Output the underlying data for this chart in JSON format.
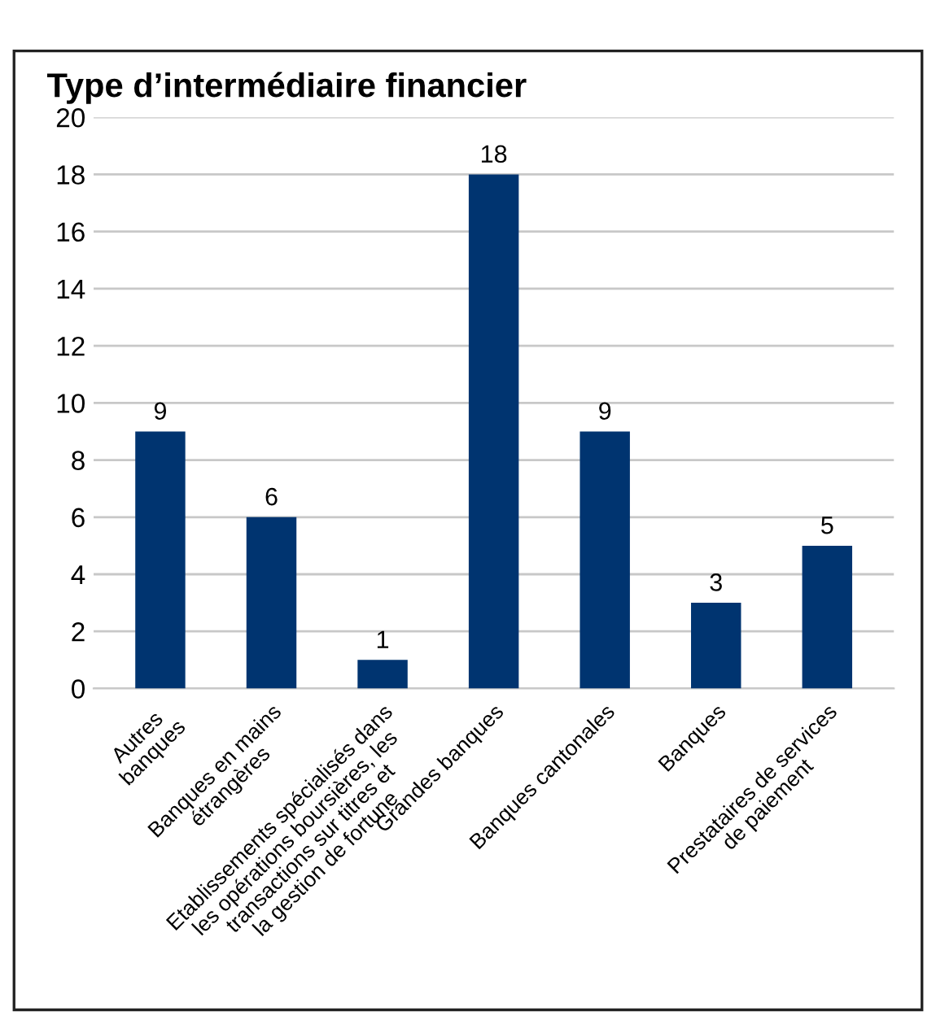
{
  "chart_data": {
    "type": "bar",
    "title": "Type d’intermédiaire financier",
    "categories": [
      "Autres\nbanques",
      "Banques en mains\nétrangères",
      "Etablissements spécialisés dans\nles opérations boursières, les\ntransactions sur titres et\nla gestion de fortune",
      "Grandes banques",
      "Banques cantonales",
      "Banques",
      "Prestataires de services\nde paiement"
    ],
    "values": [
      9,
      6,
      1,
      18,
      9,
      3,
      5
    ],
    "color": "#003470",
    "ylim": [
      0,
      20
    ],
    "yticks": [
      0,
      2,
      4,
      6,
      8,
      10,
      12,
      14,
      16,
      18,
      20
    ],
    "grid": "y",
    "data_labels": true
  }
}
